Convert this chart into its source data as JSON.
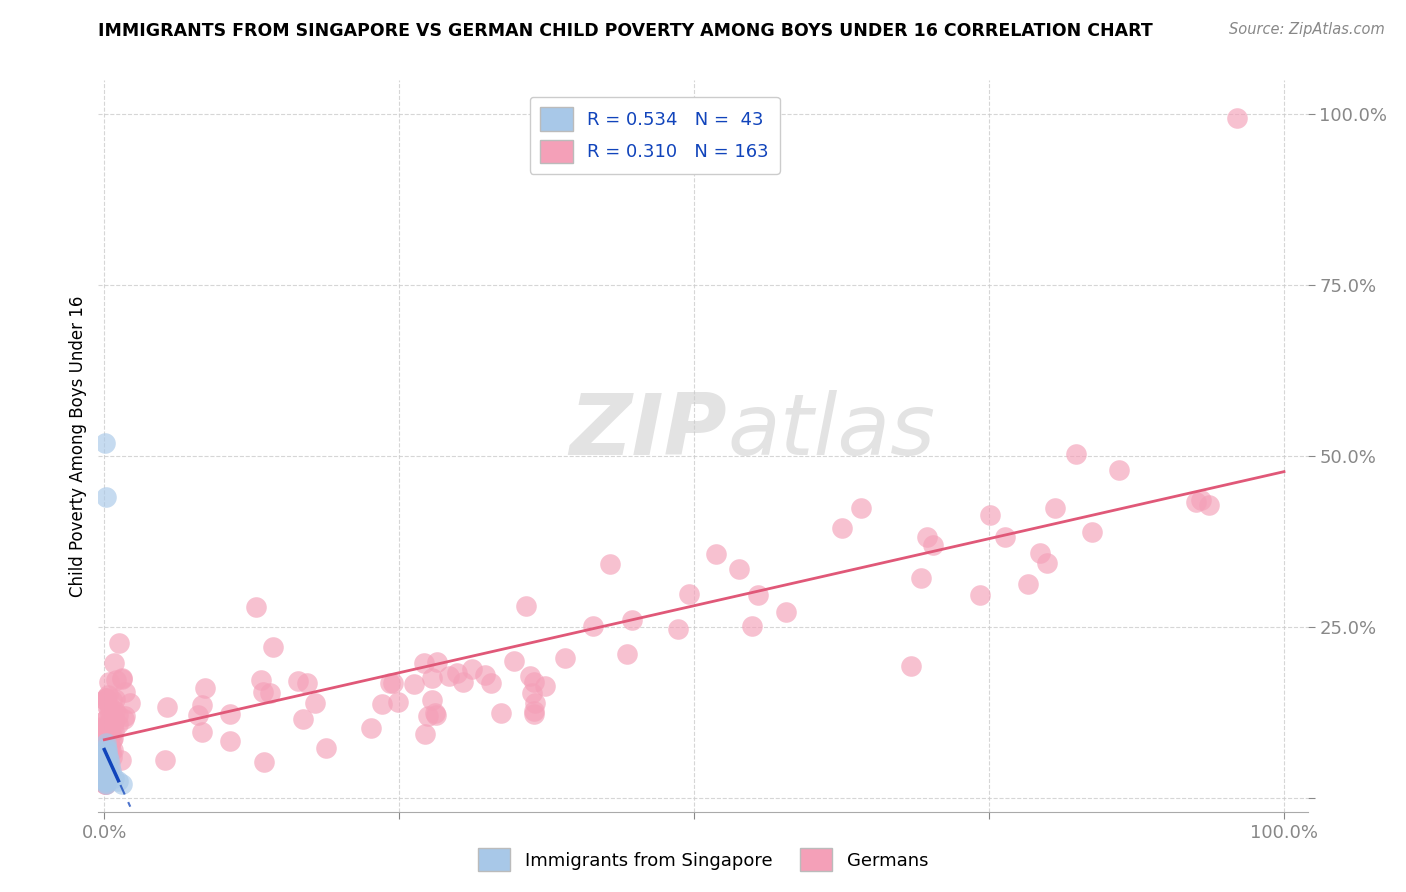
{
  "title": "IMMIGRANTS FROM SINGAPORE VS GERMAN CHILD POVERTY AMONG BOYS UNDER 16 CORRELATION CHART",
  "source": "Source: ZipAtlas.com",
  "ylabel": "Child Poverty Among Boys Under 16",
  "legend_r1": "R = 0.534",
  "legend_n1": "N =  43",
  "legend_r2": "R = 0.310",
  "legend_n2": "N = 163",
  "color_blue": "#A8C8E8",
  "color_pink": "#F4A0B8",
  "color_blue_line": "#1144BB",
  "color_pink_line": "#E05878",
  "color_legend_text": "#1144BB",
  "color_tick": "#4499CC",
  "watermark_zip": "ZIP",
  "watermark_atlas": "atlas",
  "legend_label1": "Immigrants from Singapore",
  "legend_label2": "Germans"
}
